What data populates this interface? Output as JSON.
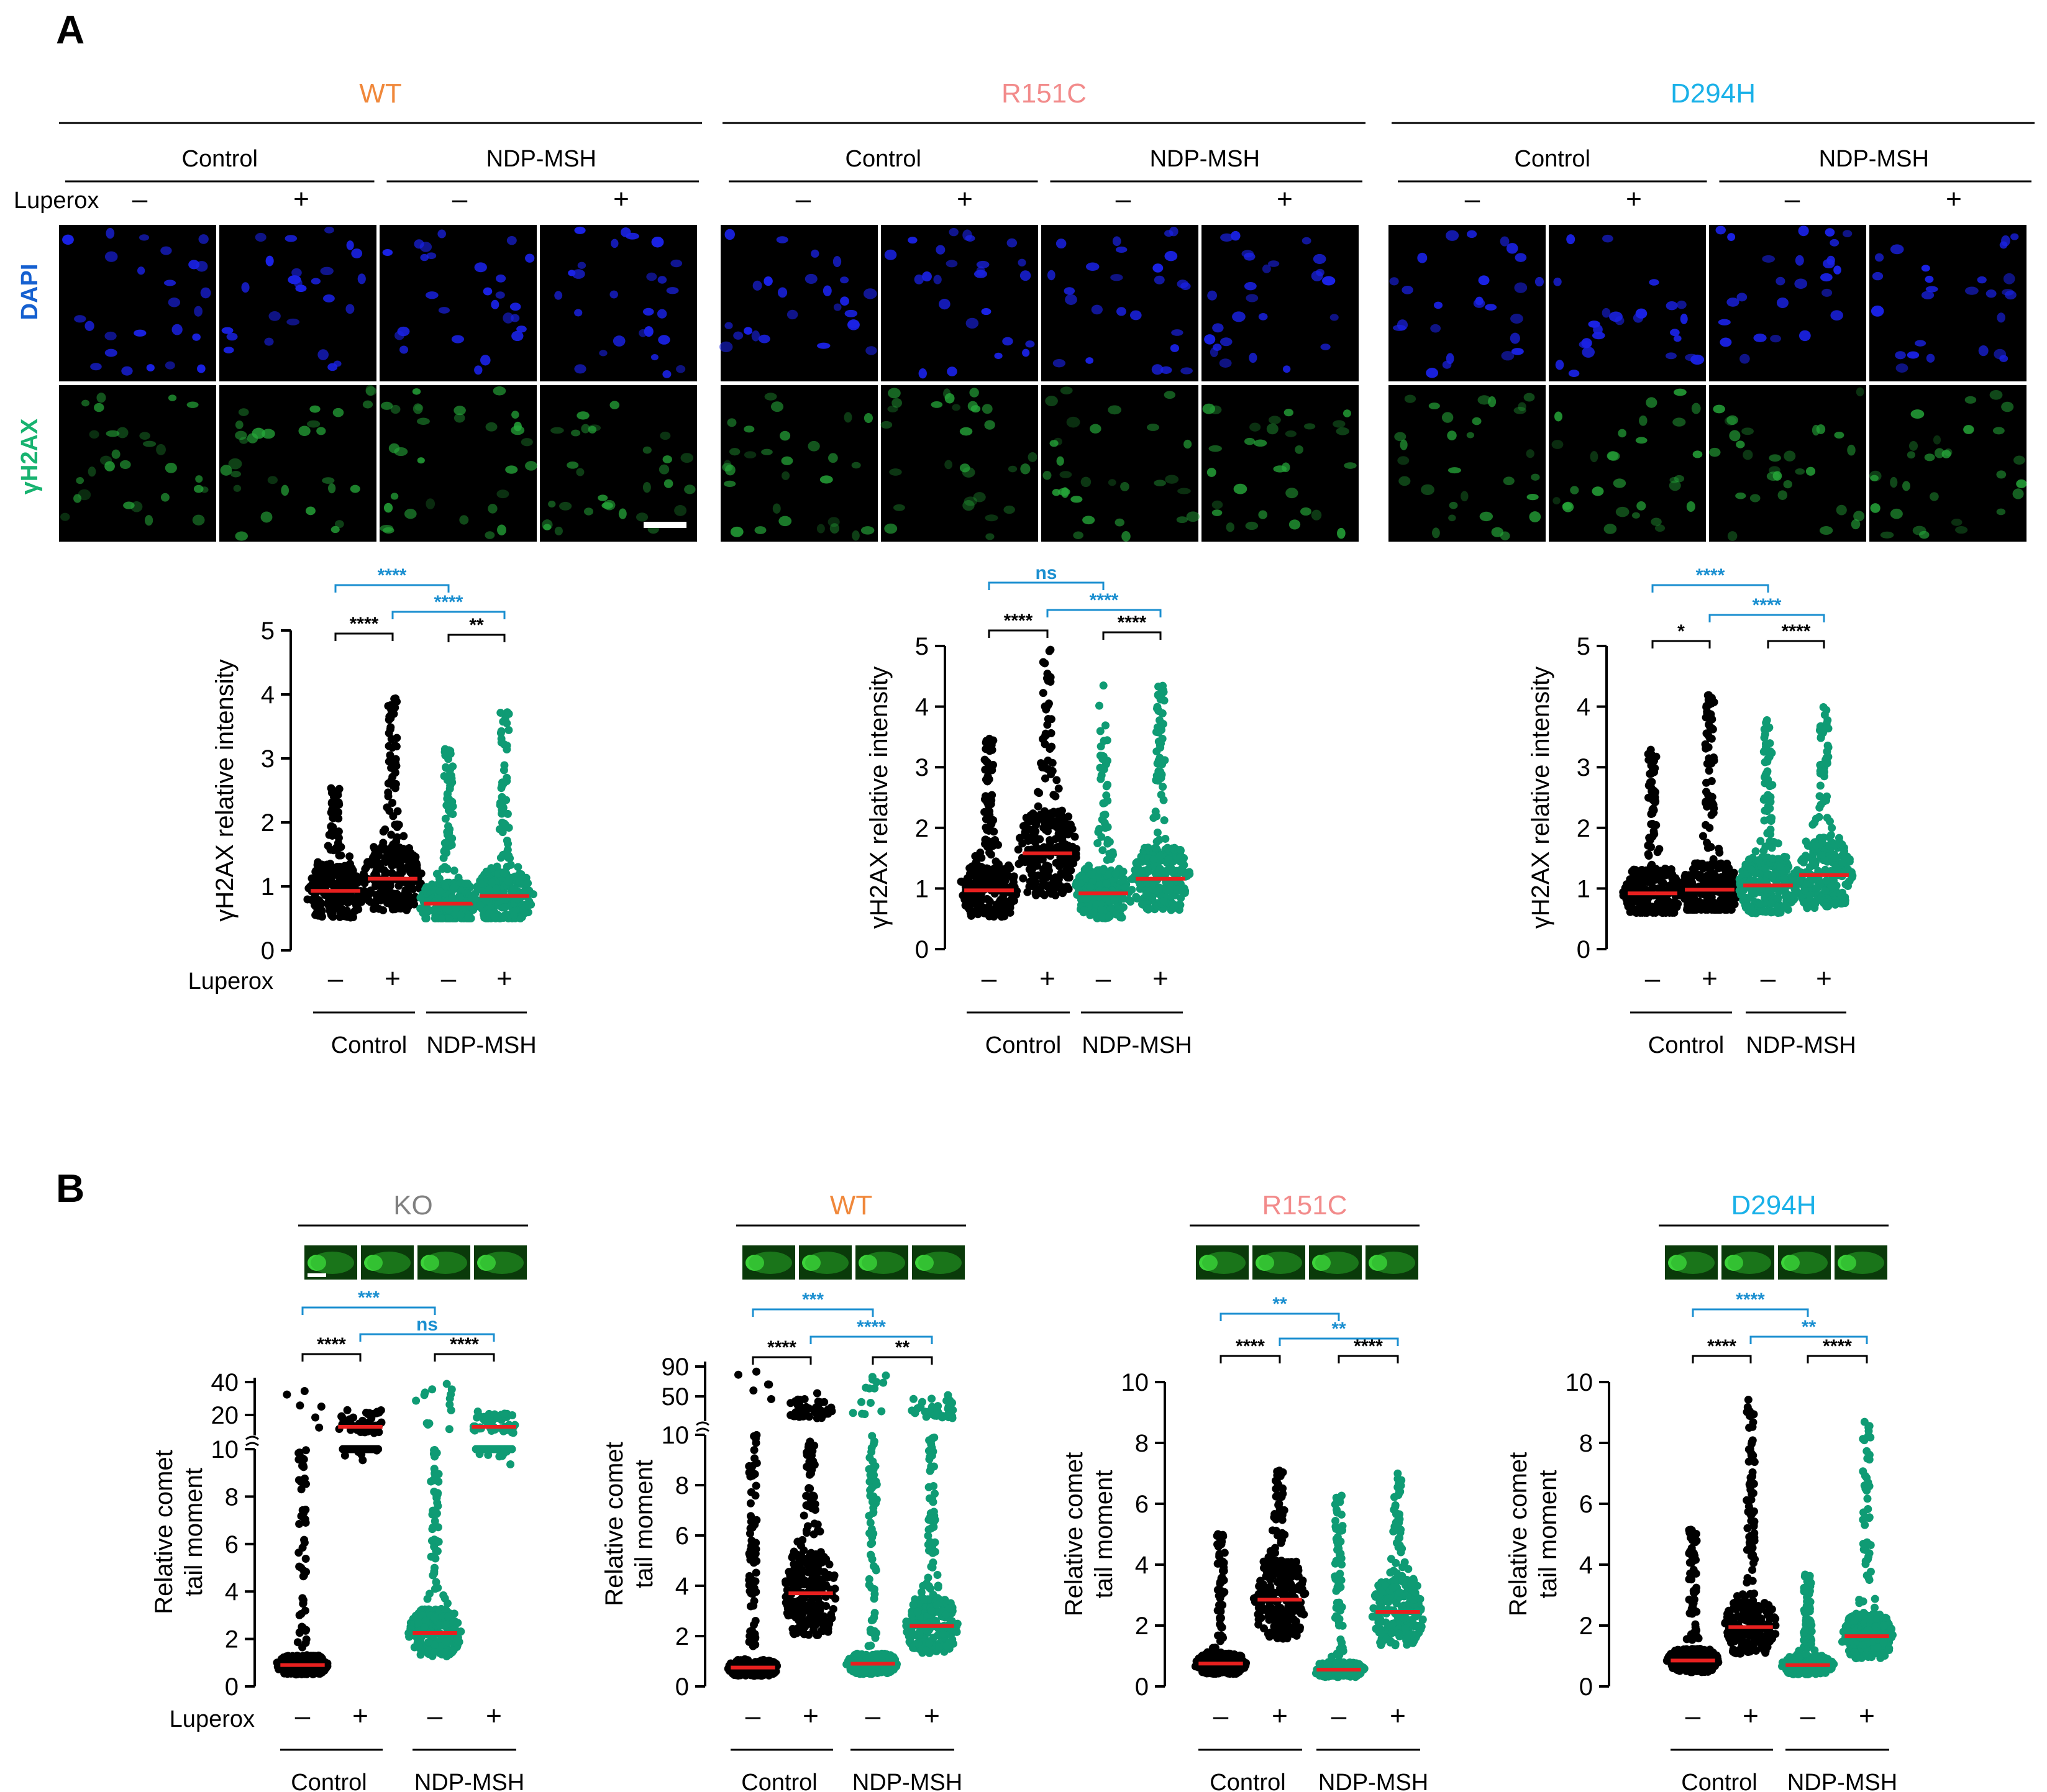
{
  "panel_a_letter": "A",
  "panel_b_letter": "B",
  "colors": {
    "WT": "#f0883b",
    "R151C": "#f28b8b",
    "D294H": "#1ab1e8",
    "KO": "#808080",
    "control_points": "#000000",
    "ndp_points": "#0f9b74",
    "mean_line": "#e8201f",
    "sig_cross": "#1b8fd0",
    "sig_within": "#000000",
    "dapi_label": "#1560d0",
    "h2ax_label": "#18b370",
    "dapi_nuclei": "#1a22e6",
    "h2ax_nuclei": "#26a83a"
  },
  "labels": {
    "control": "Control",
    "ndp": "NDP-MSH",
    "luperox": "Luperox",
    "minus": "–",
    "plus": "+",
    "dapi": "DAPI",
    "h2ax": "γH2AX",
    "h2ax_axis": "γH2AX relative intensity",
    "comet_axis_line1": "Relative comet",
    "comet_axis_line2": "tail moment"
  },
  "panel_a": {
    "genotypes": [
      "WT",
      "R151C",
      "D294H"
    ]
  },
  "panel_b": {
    "genotypes": [
      "KO",
      "WT",
      "R151C",
      "D294H"
    ]
  },
  "chart_data": [
    {
      "type": "scatter",
      "panel": "A",
      "genotype": "WT",
      "ylabel": "γH2AX relative intensity",
      "ylim": [
        0,
        5
      ],
      "yticks": [
        0,
        1,
        2,
        3,
        4,
        5
      ],
      "categories": [
        "Control –",
        "Control +",
        "NDP-MSH –",
        "NDP-MSH +"
      ],
      "means": [
        0.93,
        1.12,
        0.73,
        0.85
      ],
      "maxima": [
        2.6,
        3.95,
        3.15,
        3.9
      ],
      "minima": [
        0.0,
        0.55,
        0.5,
        0.5
      ],
      "sig": [
        {
          "pair": [
            0,
            2
          ],
          "label": "****",
          "kind": "cross"
        },
        {
          "pair": [
            1,
            3
          ],
          "label": "****",
          "kind": "cross"
        },
        {
          "pair": [
            0,
            1
          ],
          "label": "****",
          "kind": "within"
        },
        {
          "pair": [
            2,
            3
          ],
          "label": "**",
          "kind": "within"
        }
      ]
    },
    {
      "type": "scatter",
      "panel": "A",
      "genotype": "R151C",
      "ylabel": "γH2AX relative intensity",
      "ylim": [
        0,
        5
      ],
      "yticks": [
        0,
        1,
        2,
        3,
        4,
        5
      ],
      "categories": [
        "Control –",
        "Control +",
        "NDP-MSH –",
        "NDP-MSH +"
      ],
      "means": [
        0.97,
        1.58,
        0.92,
        1.16
      ],
      "maxima": [
        3.5,
        4.95,
        4.35,
        4.4
      ],
      "minima": [
        0.35,
        0.8,
        0.4,
        0.5
      ],
      "sig": [
        {
          "pair": [
            0,
            2
          ],
          "label": "ns",
          "kind": "cross"
        },
        {
          "pair": [
            1,
            3
          ],
          "label": "****",
          "kind": "cross"
        },
        {
          "pair": [
            0,
            1
          ],
          "label": "****",
          "kind": "within"
        },
        {
          "pair": [
            2,
            3
          ],
          "label": "****",
          "kind": "within"
        }
      ]
    },
    {
      "type": "scatter",
      "panel": "A",
      "genotype": "D294H",
      "ylabel": "γH2AX relative intensity",
      "ylim": [
        0,
        5
      ],
      "yticks": [
        0,
        1,
        2,
        3,
        4,
        5
      ],
      "categories": [
        "Control –",
        "Control +",
        "NDP-MSH –",
        "NDP-MSH +"
      ],
      "means": [
        0.92,
        0.98,
        1.05,
        1.22
      ],
      "maxima": [
        3.35,
        4.2,
        3.85,
        4.05
      ],
      "minima": [
        0.6,
        0.65,
        0.45,
        0.65
      ],
      "sig": [
        {
          "pair": [
            0,
            2
          ],
          "label": "****",
          "kind": "cross"
        },
        {
          "pair": [
            1,
            3
          ],
          "label": "****",
          "kind": "cross"
        },
        {
          "pair": [
            0,
            1
          ],
          "label": "*",
          "kind": "within"
        },
        {
          "pair": [
            2,
            3
          ],
          "label": "****",
          "kind": "within"
        }
      ]
    },
    {
      "type": "scatter",
      "panel": "B",
      "genotype": "KO",
      "ylabel": "Relative comet tail moment",
      "ylim": [
        0,
        10
      ],
      "yticks": [
        0,
        2,
        4,
        6,
        8,
        10
      ],
      "broken_axis_upper_ticks": [
        20,
        40
      ],
      "categories": [
        "Control –",
        "Control +",
        "NDP-MSH –",
        "NDP-MSH +"
      ],
      "means": [
        0.9,
        17,
        2.25,
        17
      ],
      "maxima": [
        35,
        18,
        16,
        38
      ],
      "minima": [
        0.0,
        4.1,
        0.0,
        4.3
      ],
      "sig": [
        {
          "pair": [
            0,
            2
          ],
          "label": "***",
          "kind": "cross"
        },
        {
          "pair": [
            1,
            3
          ],
          "label": "ns",
          "kind": "cross"
        },
        {
          "pair": [
            0,
            1
          ],
          "label": "****",
          "kind": "within"
        },
        {
          "pair": [
            2,
            3
          ],
          "label": "****",
          "kind": "within"
        }
      ]
    },
    {
      "type": "scatter",
      "panel": "B",
      "genotype": "WT",
      "ylabel": "Relative comet tail moment",
      "ylim": [
        0,
        10
      ],
      "yticks": [
        0,
        2,
        4,
        6,
        8,
        10
      ],
      "broken_axis_upper_ticks": [
        50,
        90
      ],
      "categories": [
        "Control –",
        "Control +",
        "NDP-MSH –",
        "NDP-MSH +"
      ],
      "means": [
        0.75,
        3.7,
        0.9,
        2.4
      ],
      "maxima": [
        18,
        60,
        55,
        25
      ],
      "minima": [
        0.0,
        0.3,
        0.0,
        0.0
      ],
      "sig": [
        {
          "pair": [
            0,
            2
          ],
          "label": "***",
          "kind": "cross"
        },
        {
          "pair": [
            1,
            3
          ],
          "label": "****",
          "kind": "cross"
        },
        {
          "pair": [
            0,
            1
          ],
          "label": "****",
          "kind": "within"
        },
        {
          "pair": [
            2,
            3
          ],
          "label": "**",
          "kind": "within"
        }
      ]
    },
    {
      "type": "scatter",
      "panel": "B",
      "genotype": "R151C",
      "ylabel": "Relative comet tail moment",
      "ylim": [
        0,
        10
      ],
      "yticks": [
        0,
        2,
        4,
        6,
        8,
        10
      ],
      "categories": [
        "Control –",
        "Control +",
        "NDP-MSH –",
        "NDP-MSH +"
      ],
      "means": [
        0.75,
        2.85,
        0.55,
        2.45
      ],
      "maxima": [
        5.05,
        7.1,
        6.35,
        7.0
      ],
      "minima": [
        0.0,
        0.0,
        0.0,
        0.0
      ],
      "sig": [
        {
          "pair": [
            0,
            2
          ],
          "label": "**",
          "kind": "cross"
        },
        {
          "pair": [
            1,
            3
          ],
          "label": "**",
          "kind": "cross"
        },
        {
          "pair": [
            0,
            1
          ],
          "label": "****",
          "kind": "within"
        },
        {
          "pair": [
            2,
            3
          ],
          "label": "****",
          "kind": "within"
        }
      ]
    },
    {
      "type": "scatter",
      "panel": "B",
      "genotype": "D294H",
      "ylabel": "Relative comet tail moment",
      "ylim": [
        0,
        10
      ],
      "yticks": [
        0,
        2,
        4,
        6,
        8,
        10
      ],
      "categories": [
        "Control –",
        "Control +",
        "NDP-MSH –",
        "NDP-MSH +"
      ],
      "means": [
        0.85,
        1.95,
        0.7,
        1.65
      ],
      "maxima": [
        5.2,
        9.6,
        3.7,
        8.7
      ],
      "minima": [
        0.0,
        0.3,
        0.1,
        0.2
      ],
      "sig": [
        {
          "pair": [
            0,
            2
          ],
          "label": "****",
          "kind": "cross"
        },
        {
          "pair": [
            1,
            3
          ],
          "label": "**",
          "kind": "cross"
        },
        {
          "pair": [
            0,
            1
          ],
          "label": "****",
          "kind": "within"
        },
        {
          "pair": [
            2,
            3
          ],
          "label": "****",
          "kind": "within"
        }
      ]
    }
  ]
}
